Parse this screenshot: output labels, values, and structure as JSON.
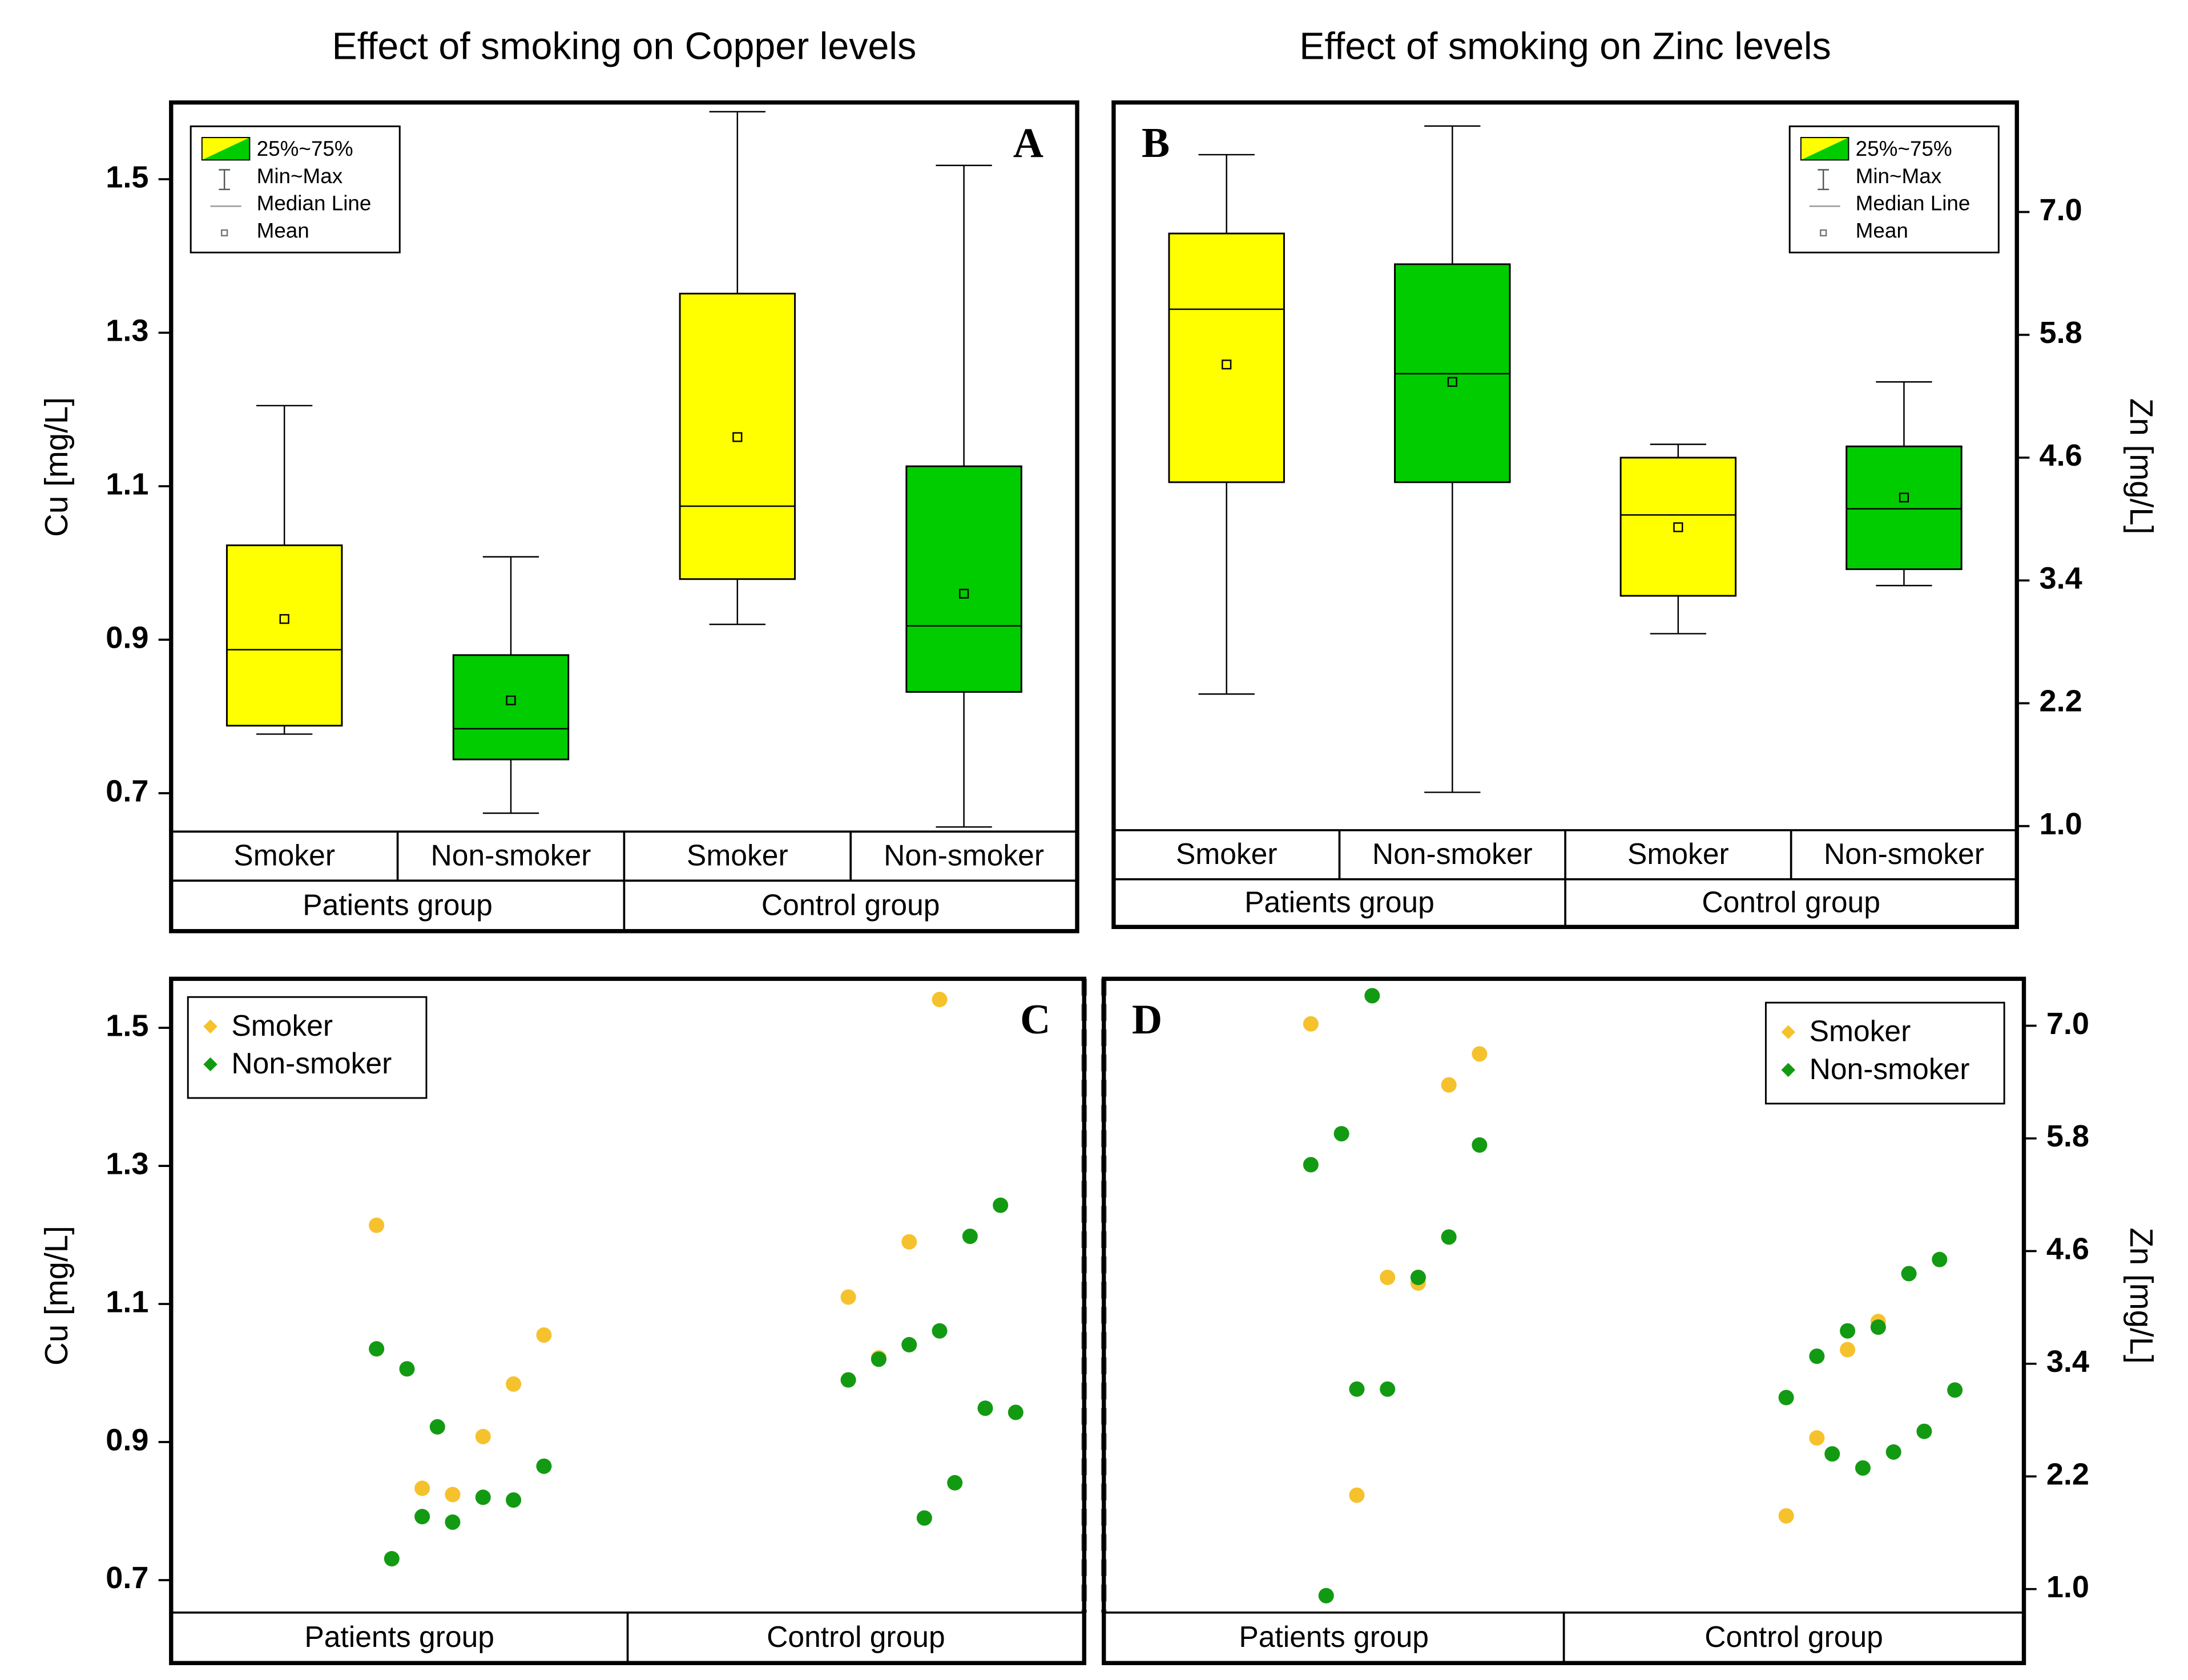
{
  "chart_data": [
    {
      "type": "box",
      "title": "Effect of smoking on Copper levels",
      "panel": "A",
      "y_label": "Cu [mg/L]",
      "y_axis_position": "left",
      "categories": [
        "Smoker",
        "Non-smoker",
        "Smoker",
        "Non-smoker"
      ],
      "groups": [
        "Patients group",
        "Control group"
      ],
      "colors": [
        "#ffff00",
        "#00cc00",
        "#ffff00",
        "#00cc00"
      ],
      "boxes": [
        {
          "min": 0.777,
          "q1": 0.788,
          "median": 0.887,
          "q3": 1.023,
          "max": 1.205,
          "mean": 0.927
        },
        {
          "min": 0.674,
          "q1": 0.744,
          "median": 0.784,
          "q3": 0.88,
          "max": 1.008,
          "mean": 0.821
        },
        {
          "min": 0.92,
          "q1": 0.979,
          "median": 1.074,
          "q3": 1.351,
          "max": 1.588,
          "mean": 1.164
        },
        {
          "min": 0.656,
          "q1": 0.832,
          "median": 0.918,
          "q3": 1.126,
          "max": 1.518,
          "mean": 0.96
        }
      ],
      "ylim": [
        0.65,
        1.6
      ],
      "yticks": [
        0.7,
        0.9,
        1.1,
        1.3,
        1.5
      ],
      "legend": [
        "25%~75%",
        "Min~Max",
        "Median Line",
        "Mean"
      ],
      "legend_position": "upper left"
    },
    {
      "type": "box",
      "title": "Effect of smoking on Zinc levels",
      "panel": "B",
      "y_label": "Zn [mg/L]",
      "y_axis_position": "right",
      "categories": [
        "Smoker",
        "Non-smoker",
        "Smoker",
        "Non-smoker"
      ],
      "groups": [
        "Patients group",
        "Control group"
      ],
      "colors": [
        "#ffff00",
        "#00cc00",
        "#ffff00",
        "#00cc00"
      ],
      "boxes": [
        {
          "min": 2.29,
          "q1": 4.36,
          "median": 6.05,
          "q3": 6.79,
          "max": 7.56,
          "mean": 5.51
        },
        {
          "min": 1.33,
          "q1": 4.36,
          "median": 5.42,
          "q3": 6.49,
          "max": 7.84,
          "mean": 5.34
        },
        {
          "min": 2.88,
          "q1": 3.25,
          "median": 4.04,
          "q3": 4.6,
          "max": 4.73,
          "mean": 3.92
        },
        {
          "min": 3.35,
          "q1": 3.51,
          "median": 4.1,
          "q3": 4.71,
          "max": 5.34,
          "mean": 4.21
        }
      ],
      "ylim": [
        0.96,
        8.07
      ],
      "yticks": [
        {
          "value": 1,
          "label": "1.0"
        },
        2.2,
        3.4,
        4.6,
        5.8,
        {
          "value": 7,
          "label": "7.0"
        }
      ],
      "legend": [
        "25%~75%",
        "Min~Max",
        "Median Line",
        "Mean"
      ],
      "legend_position": "upper right"
    },
    {
      "type": "scatter",
      "panel": "C",
      "y_label": "Cu [mg/L]",
      "y_axis_position": "left",
      "groups": [
        "Patients group",
        "Control group"
      ],
      "series": [
        {
          "name": "Smoker",
          "color": "#f5c22e",
          "values": [
            [
              1.214,
              1.055,
              0.984,
              0.908,
              0.824,
              0.833
            ],
            [
              1.541,
              1.19,
              1.022,
              1.11
            ]
          ]
        },
        {
          "name": "Non-smoker",
          "color": "#139a13",
          "values": [
            [
              0.922,
              1.006,
              1.035,
              0.865,
              0.816,
              0.82,
              0.784,
              0.792,
              0.731
            ],
            [
              1.243,
              1.198,
              1.061,
              1.041,
              1.02,
              0.99,
              0.943,
              0.949,
              0.841,
              0.79
            ]
          ]
        }
      ],
      "ylim": [
        0.653,
        1.571
      ],
      "yticks": [
        0.7,
        0.9,
        1.1,
        1.3,
        1.5
      ],
      "legend_position": "upper left"
    },
    {
      "type": "scatter",
      "panel": "D",
      "y_label": "Zn [mg/L]",
      "y_axis_position": "right",
      "groups": [
        "Patients group",
        "Control group"
      ],
      "series": [
        {
          "name": "Smoker",
          "color": "#f5c22e",
          "values": [
            [
              7.02,
              6.7,
              6.37,
              4.26,
              4.32,
              2.0
            ],
            [
              3.85,
              3.55,
              2.61,
              1.78
            ]
          ]
        },
        {
          "name": "Non-smoker",
          "color": "#139a13",
          "values": [
            [
              7.32,
              5.85,
              5.52,
              5.73,
              4.75,
              4.32,
              3.13,
              3.13,
              0.93
            ],
            [
              4.51,
              4.36,
              3.79,
              3.75,
              3.48,
              3.04,
              3.12,
              2.68,
              2.46,
              2.29,
              2.44
            ]
          ]
        }
      ],
      "ylim": [
        0.75,
        7.5
      ],
      "yticks": [
        {
          "value": 1,
          "label": "1.0"
        },
        2.2,
        3.4,
        4.6,
        5.8,
        {
          "value": 7,
          "label": "7.0"
        }
      ],
      "legend_position": "upper right"
    }
  ]
}
